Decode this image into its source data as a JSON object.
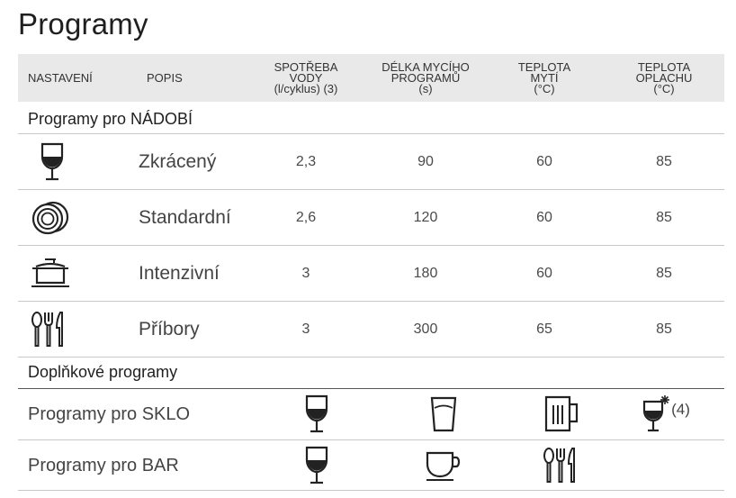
{
  "title": "Programy",
  "header": {
    "setting": "NASTAVENÍ",
    "description": "POPIS",
    "water": "SPOTŘEBA\nVODY\n(l/cyklus) (3)",
    "duration": "DÉLKA MYCÍHO\nPROGRAMŮ\n(s)",
    "wash_temp": "TEPLOTA\nMYTÍ\n(°C)",
    "rinse_temp": "TEPLOTA\nOPLACHU\n(°C)"
  },
  "section_dishes": "Programy pro NÁDOBÍ",
  "rows": [
    {
      "icon": "wine-glass-icon",
      "description": "Zkrácený",
      "water": "2,3",
      "duration": "90",
      "wash_temp": "60",
      "rinse_temp": "85"
    },
    {
      "icon": "plates-icon",
      "description": "Standardní",
      "water": "2,6",
      "duration": "120",
      "wash_temp": "60",
      "rinse_temp": "85"
    },
    {
      "icon": "pot-icon",
      "description": "Intenzivní",
      "water": "3",
      "duration": "180",
      "wash_temp": "60",
      "rinse_temp": "85"
    },
    {
      "icon": "cutlery-icon",
      "description": "Příbory",
      "water": "3",
      "duration": "300",
      "wash_temp": "65",
      "rinse_temp": "85"
    }
  ],
  "section_extra": "Doplňkové programy",
  "extra_rows": [
    {
      "label": "Programy pro SKLO",
      "icons": [
        "wine-glass-icon",
        "tumbler-icon",
        "beer-mug-icon",
        "glass-cold-icon"
      ],
      "note": "(4)"
    },
    {
      "label": "Programy pro BAR",
      "icons": [
        "wine-glass-icon",
        "coffee-cup-icon",
        "cutlery-icon"
      ]
    }
  ]
}
